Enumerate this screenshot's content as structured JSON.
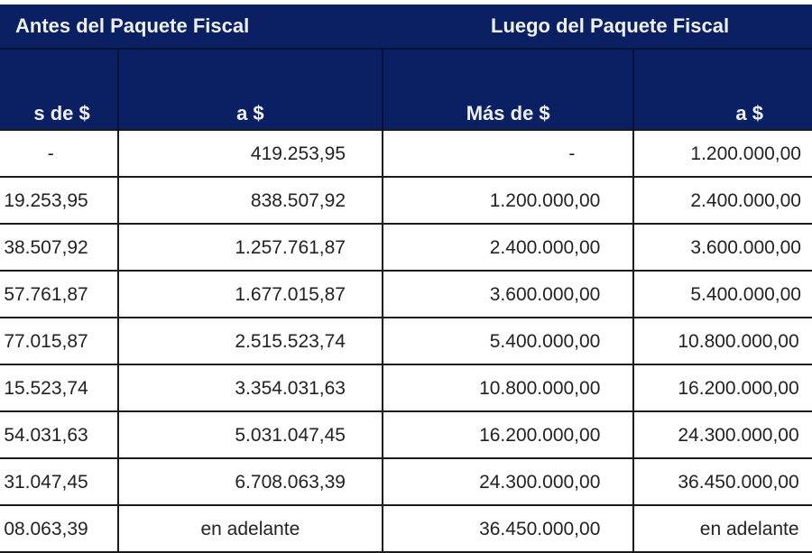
{
  "table": {
    "groups": [
      {
        "label": "Antes del Paquete Fiscal"
      },
      {
        "label": "Luego del Paquete Fiscal"
      }
    ],
    "columns": [
      "s de $",
      "a $",
      "Más de $",
      "a $"
    ],
    "rows": [
      [
        "-",
        "419.253,95",
        "-",
        "1.200.000,00"
      ],
      [
        "19.253,95",
        "838.507,92",
        "1.200.000,00",
        "2.400.000,00"
      ],
      [
        "38.507,92",
        "1.257.761,87",
        "2.400.000,00",
        "3.600.000,00"
      ],
      [
        "57.761,87",
        "1.677.015,87",
        "3.600.000,00",
        "5.400.000,00"
      ],
      [
        "77.015,87",
        "2.515.523,74",
        "5.400.000,00",
        "10.800.000,00"
      ],
      [
        "15.523,74",
        "3.354.031,63",
        "10.800.000,00",
        "16.200.000,00"
      ],
      [
        "54.031,63",
        "5.031.047,45",
        "16.200.000,00",
        "24.300.000,00"
      ],
      [
        "31.047,45",
        "6.708.063,39",
        "24.300.000,00",
        "36.450.000,00"
      ],
      [
        "08.063,39",
        "en adelante",
        "36.450.000,00",
        "en adelante"
      ]
    ]
  },
  "colors": {
    "header_bg": "#0b2063",
    "header_text": "#eef1f8",
    "border": "#1a1a1a"
  }
}
